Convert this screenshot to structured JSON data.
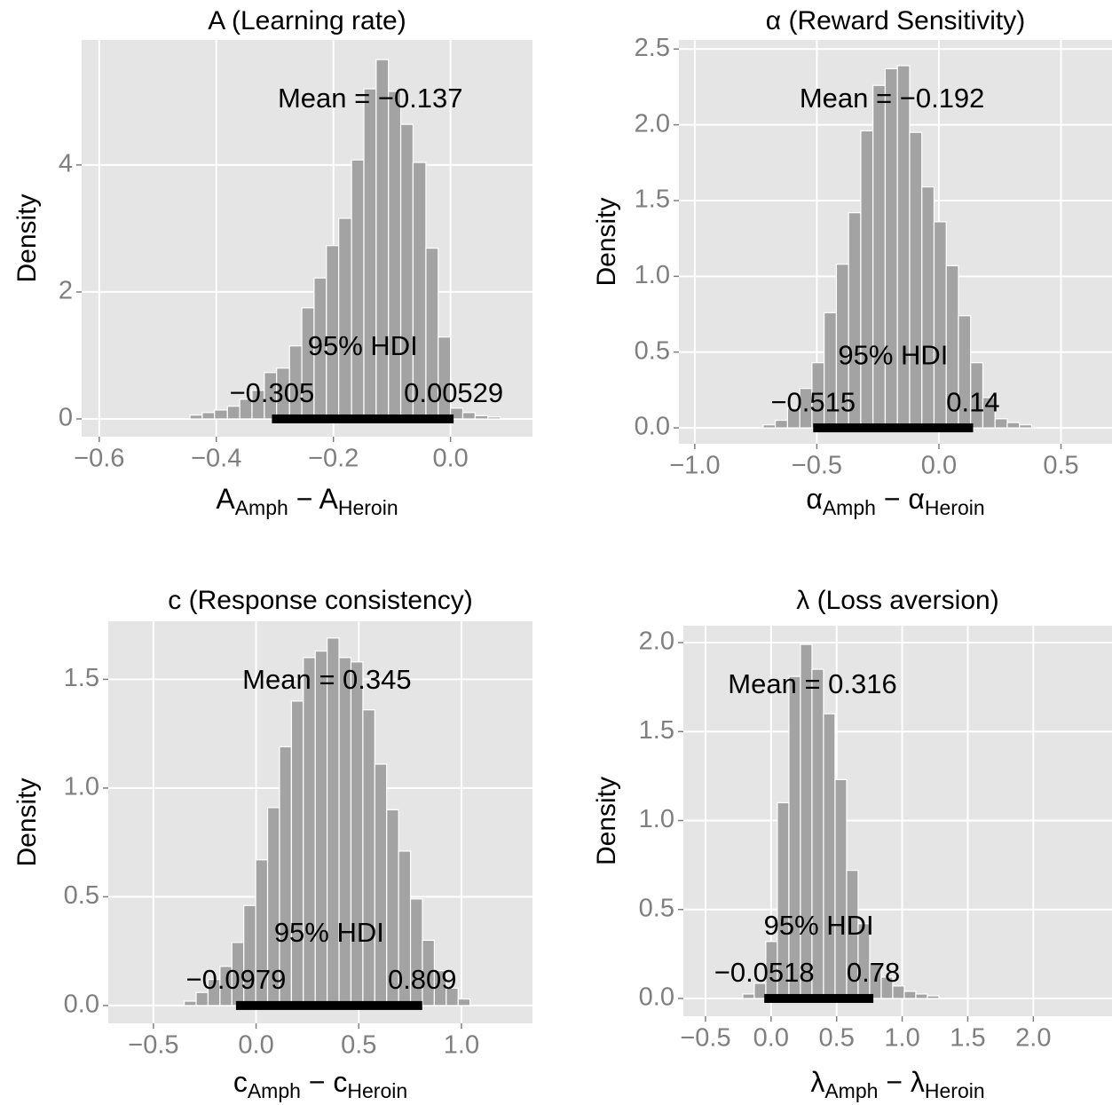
{
  "chart_data": [
    {
      "type": "histogram",
      "title": "A (Learning rate)",
      "ylabel": "Density",
      "xlabel": [
        {
          "text": "A"
        },
        {
          "text": "Amph",
          "sub": true
        },
        {
          "text": " − "
        },
        {
          "text": "A"
        },
        {
          "text": "Heroin",
          "sub": true
        }
      ],
      "bins": [
        -0.445,
        -0.424,
        -0.403,
        -0.381,
        -0.36,
        -0.339,
        -0.318,
        -0.297,
        -0.275,
        -0.254,
        -0.233,
        -0.212,
        -0.191,
        -0.169,
        -0.148,
        -0.127,
        -0.106,
        -0.085,
        -0.064,
        -0.042,
        -0.021,
        0.0,
        0.021,
        0.042,
        0.064,
        0.085
      ],
      "values": [
        0.06,
        0.1,
        0.14,
        0.2,
        0.31,
        0.45,
        0.73,
        0.8,
        1.15,
        1.75,
        2.22,
        2.73,
        3.16,
        4.08,
        5.2,
        5.66,
        5.16,
        4.64,
        4.04,
        2.69,
        1.29,
        0.17,
        0.1,
        0.05,
        0.03
      ],
      "color": "#a3a3a3",
      "grid": true,
      "xlim": [
        -0.63,
        0.14
      ],
      "ylim": [
        -0.28,
        5.97
      ],
      "xticks": [
        {
          "value": -0.6,
          "label": "−0.6"
        },
        {
          "value": -0.4,
          "label": "−0.4"
        },
        {
          "value": -0.2,
          "label": "−0.2"
        },
        {
          "value": 0,
          "label": "0.0"
        }
      ],
      "yticks": [
        0,
        2,
        4
      ],
      "mean": {
        "value": -0.137,
        "label": "Mean = −0.137"
      },
      "hdi_label": "95% HDI",
      "hdi": [
        {
          "value": -0.305,
          "label": "−0.305"
        },
        0.00529
      ]
    },
    {
      "type": "histogram",
      "title": "α (Reward Sensitivity)",
      "ylabel": "Density",
      "xlabel": [
        {
          "text": "α"
        },
        {
          "text": "Amph",
          "sub": true
        },
        {
          "text": " − "
        },
        {
          "text": "α"
        },
        {
          "text": "Heroin",
          "sub": true
        }
      ],
      "bins": [
        -0.72,
        -0.67,
        -0.62,
        -0.57,
        -0.52,
        -0.47,
        -0.42,
        -0.37,
        -0.32,
        -0.27,
        -0.22,
        -0.17,
        -0.12,
        -0.07,
        -0.02,
        0.03,
        0.08,
        0.13,
        0.18,
        0.23,
        0.28,
        0.33,
        0.38
      ],
      "values": [
        0.02,
        0.05,
        0.13,
        0.26,
        0.43,
        0.76,
        1.08,
        1.42,
        1.96,
        2.26,
        2.37,
        2.39,
        1.95,
        1.59,
        1.36,
        1.07,
        0.74,
        0.43,
        0.2,
        0.06,
        0.035,
        0.02
      ],
      "color": "#a3a3a3",
      "grid": true,
      "xlim": [
        -1.065,
        0.709
      ],
      "ylim": [
        -0.105,
        2.56
      ],
      "xticks": [
        {
          "value": -1.0,
          "label": "−1.0"
        },
        {
          "value": -0.5,
          "label": "−0.5"
        },
        {
          "value": 0,
          "label": "0.0"
        },
        0.5
      ],
      "yticks": [
        {
          "value": 0,
          "label": "0.0"
        },
        0.5,
        {
          "value": 1,
          "label": "1.0"
        },
        1.5,
        {
          "value": 2,
          "label": "2.0"
        },
        2.5
      ],
      "mean": {
        "value": -0.192,
        "label": "Mean = −0.192"
      },
      "hdi_label": "95% HDI",
      "hdi": [
        {
          "value": -0.515,
          "label": "−0.515"
        },
        0.14
      ]
    },
    {
      "type": "histogram",
      "title": "c (Response consistency)",
      "ylabel": "Density",
      "xlabel": [
        {
          "text": "c"
        },
        {
          "text": "Amph",
          "sub": true
        },
        {
          "text": " − "
        },
        {
          "text": "c"
        },
        {
          "text": "Heroin",
          "sub": true
        }
      ],
      "bins": [
        -0.35,
        -0.292,
        -0.234,
        -0.176,
        -0.118,
        -0.06,
        -0.002,
        0.056,
        0.114,
        0.172,
        0.23,
        0.288,
        0.346,
        0.404,
        0.462,
        0.52,
        0.578,
        0.636,
        0.694,
        0.752,
        0.81,
        0.868,
        0.926,
        0.984,
        1.042
      ],
      "values": [
        0.02,
        0.06,
        0.12,
        0.18,
        0.29,
        0.46,
        0.67,
        0.91,
        1.19,
        1.4,
        1.6,
        1.63,
        1.69,
        1.6,
        1.58,
        1.36,
        1.11,
        0.9,
        0.71,
        0.49,
        0.3,
        0.16,
        0.08,
        0.03
      ],
      "color": "#a3a3a3",
      "grid": true,
      "xlim": [
        -0.72,
        1.346
      ],
      "ylim": [
        -0.082,
        1.767
      ],
      "xticks": [
        {
          "value": -0.5,
          "label": "−0.5"
        },
        {
          "value": 0,
          "label": "0.0"
        },
        0.5,
        {
          "value": 1,
          "label": "1.0"
        }
      ],
      "yticks": [
        {
          "value": 0,
          "label": "0.0"
        },
        0.5,
        {
          "value": 1,
          "label": "1.0"
        },
        1.5
      ],
      "mean": {
        "value": 0.345,
        "label": "Mean = 0.345"
      },
      "hdi_label": "95% HDI",
      "hdi": [
        {
          "value": -0.0979,
          "label": "−0.0979"
        },
        0.809
      ]
    },
    {
      "type": "histogram",
      "title": "λ (Loss aversion)",
      "ylabel": "Density",
      "xlabel": [
        {
          "text": "λ"
        },
        {
          "text": "Amph",
          "sub": true
        },
        {
          "text": " − "
        },
        {
          "text": "λ"
        },
        {
          "text": "Heroin",
          "sub": true
        }
      ],
      "bins": [
        -0.216,
        -0.128,
        -0.04,
        0.048,
        0.136,
        0.224,
        0.312,
        0.4,
        0.488,
        0.576,
        0.664,
        0.752,
        0.84,
        0.928,
        1.016,
        1.104,
        1.192,
        1.28
      ],
      "values": [
        0.025,
        0.085,
        0.32,
        1.1,
        1.81,
        1.99,
        1.85,
        1.6,
        1.23,
        0.72,
        0.42,
        0.2,
        0.12,
        0.07,
        0.04,
        0.025,
        0.015
      ],
      "color": "#a3a3a3",
      "grid": true,
      "xlim": [
        -0.669,
        2.6
      ],
      "ylim": [
        -0.1,
        2.095
      ],
      "xticks": [
        {
          "value": -0.5,
          "label": "−0.5"
        },
        {
          "value": 0,
          "label": "0.0"
        },
        0.5,
        {
          "value": 1,
          "label": "1.0"
        },
        1.5,
        {
          "value": 2,
          "label": "2.0"
        }
      ],
      "yticks": [
        {
          "value": 0,
          "label": "0.0"
        },
        0.5,
        {
          "value": 1,
          "label": "1.0"
        },
        1.5,
        {
          "value": 2,
          "label": "2.0"
        }
      ],
      "mean": {
        "value": 0.316,
        "label": "Mean = 0.316"
      },
      "hdi_label": "95% HDI",
      "hdi": [
        {
          "value": -0.0518,
          "label": "−0.0518"
        },
        0.78
      ]
    }
  ]
}
